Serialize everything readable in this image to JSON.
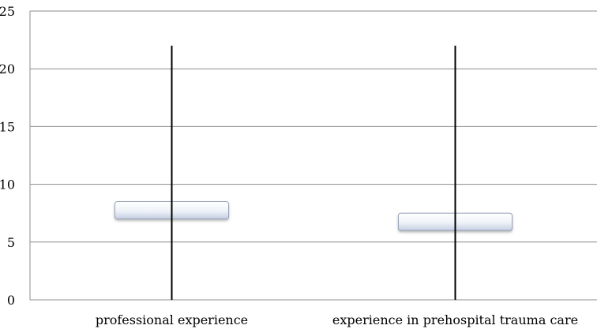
{
  "chart_data": {
    "type": "boxplot",
    "title": "",
    "xlabel": "",
    "ylabel": "",
    "ylim": [
      0,
      25
    ],
    "yticks": [
      0,
      5,
      10,
      15,
      20,
      25
    ],
    "grid": true,
    "legend": "none",
    "categories": [
      "professional experience",
      "experience in prehospital trauma care"
    ],
    "boxes": [
      {
        "category": "professional experience",
        "whisker_low": 0,
        "box_low": 7,
        "box_high": 8.5,
        "whisker_high": 22
      },
      {
        "category": "experience in prehospital trauma care",
        "whisker_low": 0,
        "box_low": 6,
        "box_high": 7.5,
        "whisker_high": 22
      }
    ],
    "colors": {
      "grid": "#8c8c8c",
      "whisker": "#000000",
      "box_top": "#ffffff",
      "box_bottom": "#c9d3e6",
      "box_edge": "#8a96ad"
    }
  }
}
